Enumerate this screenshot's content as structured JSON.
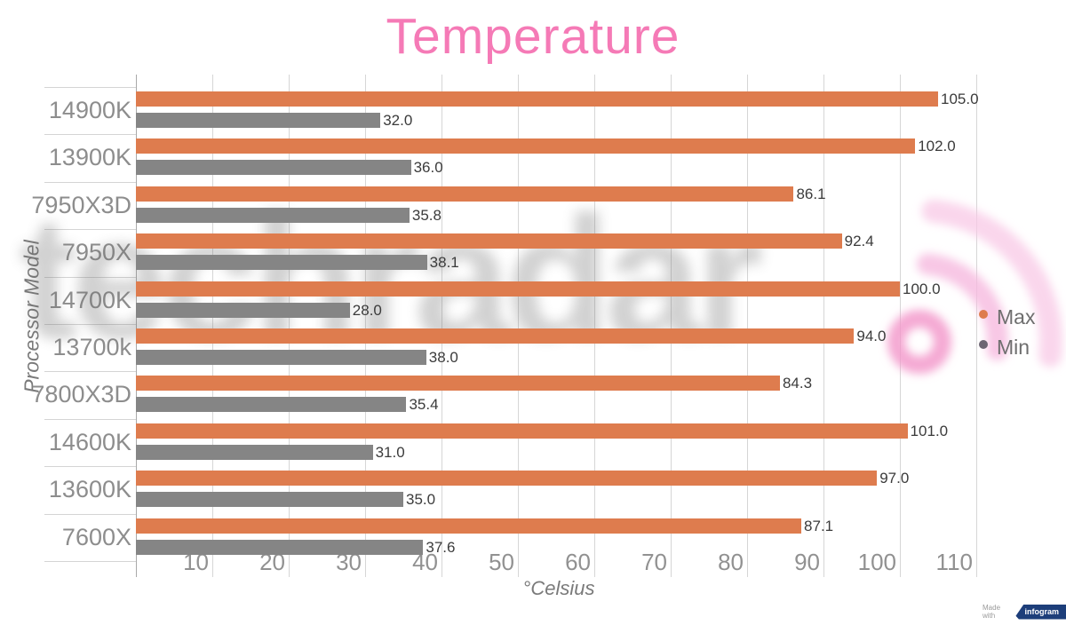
{
  "title": "Temperature",
  "watermark": {
    "text": "techradar"
  },
  "made_with": {
    "prefix": "Made with",
    "brand": "infogram"
  },
  "legend": {
    "items": [
      {
        "label": "Max",
        "dot_color": "#DE7C4E"
      },
      {
        "label": "Min",
        "dot_color": "#6C6572"
      }
    ]
  },
  "colors": {
    "title": "#F57AB6",
    "grid": "#D6D6D6",
    "axis_line": "#A9A9A9",
    "separator": "#D4D4D4",
    "tick_label": "#919191",
    "category_label": "#8D8D8D",
    "value_label": "#3B3B3B",
    "axis_title": "#7A7A7A",
    "legend_text": "#6E6E6E",
    "watermark_ring": "#F295C9",
    "watermark_arc_mid": "#F6B9DF",
    "watermark_arc_outer": "#F8C8E6",
    "badge_bg": "#1D3E7A"
  },
  "chart_data": {
    "type": "bar",
    "orientation": "horizontal",
    "title": "Temperature",
    "xlabel": "°Celsius",
    "ylabel": "Processor Model",
    "xlim": [
      0,
      112
    ],
    "xticks": [
      10,
      20,
      30,
      40,
      50,
      60,
      70,
      80,
      90,
      100,
      110
    ],
    "grid": true,
    "legend_position": "right",
    "value_labels": true,
    "value_decimals": 1,
    "categories": [
      "14900K",
      "13900K",
      "7950X3D",
      "7950X",
      "14700K",
      "13700k",
      "7800X3D",
      "14600K",
      "13600K",
      "7600X"
    ],
    "series": [
      {
        "name": "Max",
        "color": "#DE7C4E",
        "values": [
          105.0,
          102.0,
          86.1,
          92.4,
          100.0,
          94.0,
          84.3,
          101.0,
          97.0,
          87.1
        ]
      },
      {
        "name": "Min",
        "color": "#858585",
        "values": [
          32.0,
          36.0,
          35.8,
          38.1,
          28.0,
          38.0,
          35.4,
          31.0,
          35.0,
          37.6
        ]
      }
    ]
  }
}
